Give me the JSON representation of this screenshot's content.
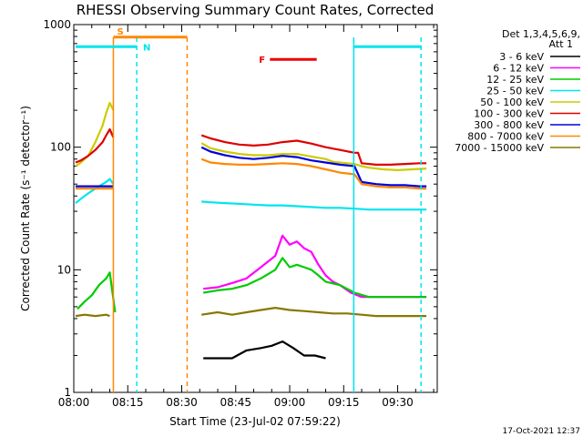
{
  "chart_data": {
    "type": "line",
    "title": "RHESSI Observing Summary Count Rates, Corrected",
    "xlabel": "Start Time (23-Jul-02 07:59:22)",
    "ylabel": "Corrected Count Rate (s⁻¹ detector⁻¹)",
    "y_scale": "log",
    "ylim": [
      1,
      1000
    ],
    "xlim_minutes": [
      0,
      101
    ],
    "x_ticks": [
      {
        "m": 0,
        "label": "08:00"
      },
      {
        "m": 15,
        "label": "08:15"
      },
      {
        "m": 30,
        "label": "08:30"
      },
      {
        "m": 45,
        "label": "08:45"
      },
      {
        "m": 60,
        "label": "09:00"
      },
      {
        "m": 75,
        "label": "09:15"
      },
      {
        "m": 90,
        "label": "09:30"
      }
    ],
    "y_ticks": [
      {
        "v": 1,
        "label": "1"
      },
      {
        "v": 10,
        "label": "10"
      },
      {
        "v": 100,
        "label": "100"
      },
      {
        "v": 1000,
        "label": "1000"
      }
    ],
    "legend_header": [
      "Det 1,3,4,5,6,9,",
      "Att 1"
    ],
    "timestamp": "17-Oct-2021 12:37",
    "series": [
      {
        "name": "3 - 6 keV",
        "color": "#000000",
        "points": [
          [
            36,
            1.9
          ],
          [
            40,
            1.9
          ],
          [
            44,
            1.9
          ],
          [
            48,
            2.2
          ],
          [
            52,
            2.3
          ],
          [
            55,
            2.4
          ],
          [
            58,
            2.6
          ],
          [
            61,
            2.3
          ],
          [
            64,
            2.0
          ],
          [
            67,
            2.0
          ],
          [
            70,
            1.9
          ]
        ]
      },
      {
        "name": "6 - 12 keV",
        "color": "#ff00ff",
        "points": [
          [
            36,
            7.0
          ],
          [
            40,
            7.2
          ],
          [
            44,
            7.8
          ],
          [
            48,
            8.5
          ],
          [
            52,
            10.5
          ],
          [
            56,
            13.0
          ],
          [
            58,
            19.0
          ],
          [
            60,
            16.0
          ],
          [
            62,
            17.0
          ],
          [
            64,
            15.0
          ],
          [
            66,
            14.0
          ],
          [
            68,
            11.0
          ],
          [
            70,
            9.0
          ],
          [
            72,
            8.0
          ],
          [
            74,
            7.5
          ],
          [
            77,
            6.5
          ],
          [
            80,
            6.0
          ],
          [
            84,
            6.0
          ],
          [
            88,
            6.0
          ],
          [
            92,
            6.0
          ],
          [
            96,
            6.0
          ],
          [
            98,
            6.0
          ]
        ]
      },
      {
        "name": "12 - 25 keV",
        "color": "#00cc00",
        "points": [
          [
            1,
            4.8
          ],
          [
            3,
            5.5
          ],
          [
            5,
            6.2
          ],
          [
            7,
            7.5
          ],
          [
            9,
            8.5
          ],
          [
            10,
            9.5
          ],
          [
            11.5,
            4.5
          ],
          [
            36,
            6.5
          ],
          [
            40,
            6.8
          ],
          [
            44,
            7.0
          ],
          [
            48,
            7.5
          ],
          [
            52,
            8.5
          ],
          [
            56,
            10.0
          ],
          [
            58,
            12.5
          ],
          [
            60,
            10.5
          ],
          [
            62,
            11.0
          ],
          [
            64,
            10.5
          ],
          [
            66,
            10.0
          ],
          [
            68,
            9.0
          ],
          [
            70,
            8.0
          ],
          [
            74,
            7.5
          ],
          [
            78,
            6.5
          ],
          [
            82,
            6.0
          ],
          [
            86,
            6.0
          ],
          [
            90,
            6.0
          ],
          [
            94,
            6.0
          ],
          [
            98,
            6.0
          ]
        ]
      },
      {
        "name": "25 - 50 keV",
        "color": "#00e5ee",
        "points": [
          [
            0.5,
            35
          ],
          [
            2,
            38
          ],
          [
            4,
            42
          ],
          [
            6,
            46
          ],
          [
            8,
            50
          ],
          [
            9,
            52
          ],
          [
            10,
            55
          ],
          [
            11,
            50
          ],
          [
            35.5,
            36
          ],
          [
            38,
            35.5
          ],
          [
            42,
            35
          ],
          [
            46,
            34.5
          ],
          [
            50,
            34
          ],
          [
            54,
            33.5
          ],
          [
            58,
            33.5
          ],
          [
            62,
            33
          ],
          [
            66,
            32.5
          ],
          [
            70,
            32
          ],
          [
            74,
            32
          ],
          [
            78,
            31.5
          ],
          [
            82,
            31
          ],
          [
            86,
            31
          ],
          [
            90,
            31
          ],
          [
            94,
            31
          ],
          [
            98,
            31
          ]
        ]
      },
      {
        "name": "50 - 100 keV",
        "color": "#cccc00",
        "points": [
          [
            0.5,
            70
          ],
          [
            2,
            75
          ],
          [
            4,
            85
          ],
          [
            6,
            110
          ],
          [
            8,
            150
          ],
          [
            9,
            190
          ],
          [
            10,
            230
          ],
          [
            11,
            200
          ],
          [
            35.5,
            108
          ],
          [
            38,
            98
          ],
          [
            42,
            92
          ],
          [
            46,
            88
          ],
          [
            50,
            86
          ],
          [
            54,
            86
          ],
          [
            58,
            88
          ],
          [
            62,
            88
          ],
          [
            66,
            84
          ],
          [
            70,
            80
          ],
          [
            72,
            76
          ],
          [
            76,
            74
          ],
          [
            78,
            73
          ],
          [
            80,
            70
          ],
          [
            82,
            68
          ],
          [
            86,
            66
          ],
          [
            90,
            65
          ],
          [
            94,
            66
          ],
          [
            98,
            67
          ]
        ]
      },
      {
        "name": "100 - 300 keV",
        "color": "#dd0000",
        "points": [
          [
            0.5,
            75
          ],
          [
            2,
            78
          ],
          [
            4,
            85
          ],
          [
            6,
            95
          ],
          [
            8,
            110
          ],
          [
            9,
            125
          ],
          [
            10,
            140
          ],
          [
            11,
            120
          ],
          [
            35.5,
            125
          ],
          [
            38,
            118
          ],
          [
            42,
            110
          ],
          [
            46,
            105
          ],
          [
            50,
            103
          ],
          [
            54,
            105
          ],
          [
            58,
            110
          ],
          [
            62,
            113
          ],
          [
            66,
            107
          ],
          [
            70,
            100
          ],
          [
            74,
            95
          ],
          [
            78,
            90
          ],
          [
            79,
            90
          ],
          [
            80,
            74
          ],
          [
            84,
            72
          ],
          [
            88,
            72
          ],
          [
            92,
            73
          ],
          [
            96,
            74
          ],
          [
            98,
            74
          ]
        ]
      },
      {
        "name": "300 - 800 keV",
        "color": "#0000dd",
        "points": [
          [
            0.5,
            48
          ],
          [
            4,
            48
          ],
          [
            8,
            48
          ],
          [
            11,
            48
          ],
          [
            35.5,
            100
          ],
          [
            38,
            92
          ],
          [
            42,
            86
          ],
          [
            46,
            82
          ],
          [
            50,
            80
          ],
          [
            54,
            82
          ],
          [
            58,
            85
          ],
          [
            62,
            83
          ],
          [
            66,
            78
          ],
          [
            70,
            75
          ],
          [
            74,
            72
          ],
          [
            78,
            70
          ],
          [
            80,
            52
          ],
          [
            84,
            50
          ],
          [
            88,
            49
          ],
          [
            92,
            49
          ],
          [
            96,
            48
          ],
          [
            98,
            48
          ]
        ]
      },
      {
        "name": "800 - 7000 keV",
        "color": "#ff8800",
        "points": [
          [
            0.5,
            46
          ],
          [
            4,
            46
          ],
          [
            8,
            46
          ],
          [
            11,
            46
          ],
          [
            35.5,
            80
          ],
          [
            38,
            75
          ],
          [
            42,
            73
          ],
          [
            46,
            72
          ],
          [
            50,
            72
          ],
          [
            54,
            73
          ],
          [
            58,
            74
          ],
          [
            62,
            73
          ],
          [
            66,
            70
          ],
          [
            70,
            66
          ],
          [
            74,
            62
          ],
          [
            78,
            60
          ],
          [
            80,
            50
          ],
          [
            84,
            48
          ],
          [
            88,
            47
          ],
          [
            92,
            47
          ],
          [
            96,
            46
          ],
          [
            98,
            46
          ]
        ]
      },
      {
        "name": "7000 - 15000 keV",
        "color": "#887700",
        "points": [
          [
            0.5,
            4.2
          ],
          [
            3,
            4.3
          ],
          [
            6,
            4.2
          ],
          [
            9,
            4.3
          ],
          [
            10,
            4.2
          ],
          [
            35.5,
            4.3
          ],
          [
            40,
            4.5
          ],
          [
            44,
            4.3
          ],
          [
            48,
            4.5
          ],
          [
            52,
            4.7
          ],
          [
            56,
            4.9
          ],
          [
            60,
            4.7
          ],
          [
            64,
            4.6
          ],
          [
            68,
            4.5
          ],
          [
            72,
            4.4
          ],
          [
            76,
            4.4
          ],
          [
            80,
            4.3
          ],
          [
            84,
            4.2
          ],
          [
            88,
            4.2
          ],
          [
            92,
            4.2
          ],
          [
            96,
            4.2
          ],
          [
            98,
            4.2
          ]
        ]
      }
    ],
    "vertical_markers": [
      {
        "m": 11,
        "color": "#ff8800",
        "style": "solid"
      },
      {
        "m": 17.5,
        "color": "#00e5ee",
        "style": "dashed"
      },
      {
        "m": 31.5,
        "color": "#ff8800",
        "style": "dashed"
      },
      {
        "m": 77.8,
        "color": "#00e5ee",
        "style": "solid"
      },
      {
        "m": 96.5,
        "color": "#00e5ee",
        "style": "dashed"
      }
    ],
    "flag_bars": [
      {
        "label": "S",
        "color": "#ff8800",
        "start": 11,
        "end": 31.5,
        "level": 790
      },
      {
        "label": "N",
        "color": "#00e5ee",
        "start": 0.5,
        "end": 17.5,
        "level": 660
      },
      {
        "label": "",
        "color": "#00e5ee",
        "start": 77.8,
        "end": 96.5,
        "level": 660
      },
      {
        "label": "F",
        "color": "#ee0000",
        "start": 54.5,
        "end": 67.5,
        "level": 520
      }
    ]
  }
}
